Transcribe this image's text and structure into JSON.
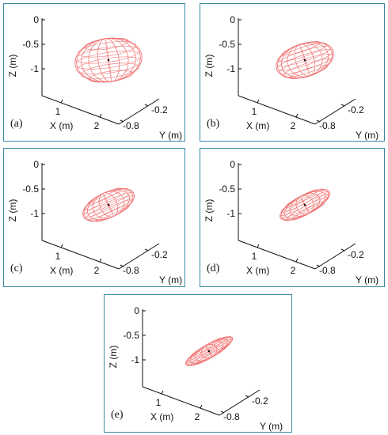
{
  "chart_data": [
    {
      "type": "3d-ellipsoid",
      "label": "(a)",
      "xlabel": "X (m)",
      "ylabel": "Y (m)",
      "zlabel": "Z (m)",
      "x_ticks": [
        "1",
        "2"
      ],
      "y_ticks": [
        "-0.8",
        "-0.2"
      ],
      "z_ticks": [
        "0",
        "-0.5",
        "-1"
      ],
      "center": {
        "x": 1.7,
        "y": -0.5,
        "z": -0.65
      },
      "ellipsoid": {
        "rx": 0.85,
        "ry": 0.55,
        "flattening": 0.6,
        "tilt_deg": -8
      }
    },
    {
      "type": "3d-ellipsoid",
      "label": "(b)",
      "xlabel": "X (m)",
      "ylabel": "Y (m)",
      "zlabel": "Z (m)",
      "x_ticks": [
        "1",
        "2"
      ],
      "y_ticks": [
        "-0.8",
        "-0.2"
      ],
      "z_ticks": [
        "0",
        "-0.5",
        "-1"
      ],
      "center": {
        "x": 1.7,
        "y": -0.5,
        "z": -0.65
      },
      "ellipsoid": {
        "rx": 0.75,
        "ry": 0.42,
        "flattening": 0.48,
        "tilt_deg": -18
      }
    },
    {
      "type": "3d-ellipsoid",
      "label": "(c)",
      "xlabel": "X (m)",
      "ylabel": "Y (m)",
      "zlabel": "Z (m)",
      "x_ticks": [
        "1",
        "2"
      ],
      "y_ticks": [
        "-0.8",
        "-0.2"
      ],
      "z_ticks": [
        "0",
        "-0.5",
        "-1"
      ],
      "center": {
        "x": 1.7,
        "y": -0.5,
        "z": -0.65
      },
      "ellipsoid": {
        "rx": 0.7,
        "ry": 0.32,
        "flattening": 0.42,
        "tilt_deg": -25
      }
    },
    {
      "type": "3d-ellipsoid",
      "label": "(d)",
      "xlabel": "X (m)",
      "ylabel": "Y (m)",
      "zlabel": "Z (m)",
      "x_ticks": [
        "1",
        "2"
      ],
      "y_ticks": [
        "-0.8",
        "-0.2"
      ],
      "z_ticks": [
        "0",
        "-0.5",
        "-1"
      ],
      "center": {
        "x": 1.7,
        "y": -0.5,
        "z": -0.65
      },
      "ellipsoid": {
        "rx": 0.7,
        "ry": 0.24,
        "flattening": 0.38,
        "tilt_deg": -28
      }
    },
    {
      "type": "3d-ellipsoid",
      "label": "(e)",
      "xlabel": "X (m)",
      "ylabel": "Y (m)",
      "zlabel": "Z (m)",
      "x_ticks": [
        "1",
        "2"
      ],
      "y_ticks": [
        "-0.8",
        "-0.2"
      ],
      "z_ticks": [
        "0",
        "-0.5",
        "-1"
      ],
      "center": {
        "x": 1.7,
        "y": -0.5,
        "z": -0.65
      },
      "ellipsoid": {
        "rx": 0.68,
        "ry": 0.16,
        "flattening": 0.33,
        "tilt_deg": -30
      }
    }
  ]
}
